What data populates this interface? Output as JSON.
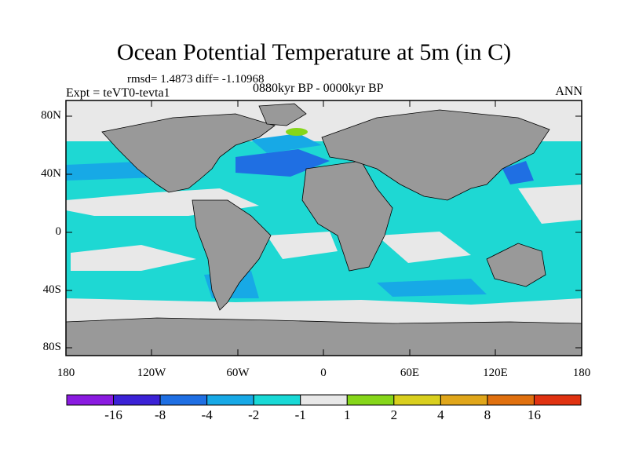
{
  "title": "Ocean Potential Temperature at 5m (in C)",
  "stats": "rmsd= 1.4873 diff= -1.10968",
  "experiment": "Expt = teVT0-tevta1",
  "period": "0880kyr BP - 0000kyr BP",
  "season": "ANN",
  "lat_labels": [
    "80N",
    "40N",
    "0",
    "40S",
    "80S"
  ],
  "lon_labels": [
    "180",
    "120W",
    "60W",
    "0",
    "60E",
    "120E",
    "180"
  ],
  "colorbar": {
    "colors": [
      "#8a1be0",
      "#3b22d6",
      "#1f6fe3",
      "#17a9e6",
      "#19d9d6",
      "#e8e8e8",
      "#86d61a",
      "#d9cf1e",
      "#e0a61a",
      "#e0700f",
      "#e03211"
    ],
    "labels": [
      "-16",
      "-8",
      "-4",
      "-2",
      "-1",
      "1",
      "2",
      "4",
      "8",
      "16"
    ]
  },
  "map_colors": {
    "land": "#999999",
    "ocean_base": "#1ed8d3",
    "neutral": "#e8e8e8",
    "blue_mid": "#17a9e6",
    "blue_dark": "#1f6fe3",
    "green": "#86d61a"
  }
}
